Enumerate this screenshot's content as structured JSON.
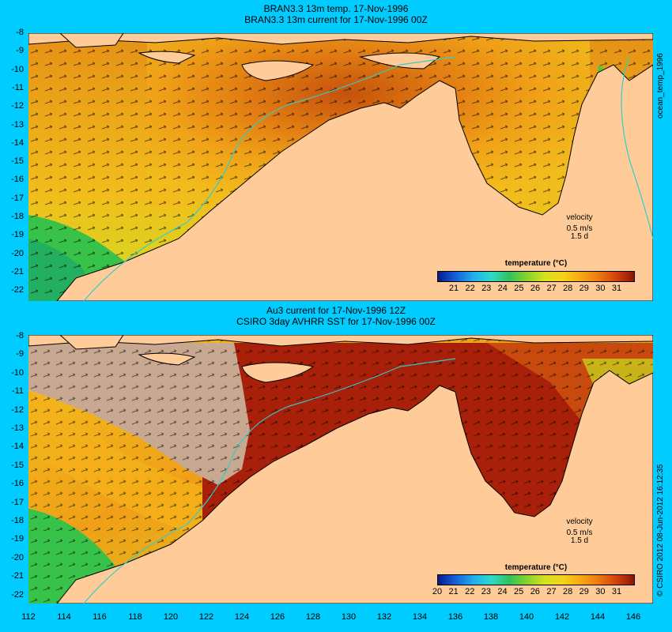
{
  "top": {
    "title1": "BRAN3.3 13m temp. 17-Nov-1996",
    "title2": "BRAN3.3 13m current for 17-Nov-1996 00Z",
    "side_label": "ocean_temp_1996",
    "colorbar_title": "temperature (°C)",
    "colorbar_ticks": [
      "21",
      "22",
      "23",
      "24",
      "25",
      "26",
      "27",
      "28",
      "29",
      "30",
      "31"
    ],
    "velocity_label": "velocity",
    "velocity_scale": "0.5 m/s",
    "velocity_days": "1.5 d"
  },
  "bottom": {
    "title1": "Au3 current for 17-Nov-1996 12Z",
    "title2": "CSIRO 3day AVHRR SST for 17-Nov-1996 00Z",
    "side_label": "© CSIRO 2012  08-Jun-2012 16:12:35",
    "colorbar_title": "temperature (°C)",
    "colorbar_ticks": [
      "20",
      "21",
      "22",
      "23",
      "24",
      "25",
      "26",
      "27",
      "28",
      "29",
      "30",
      "31"
    ],
    "velocity_label": "velocity",
    "velocity_scale": "0.5 m/s",
    "velocity_days": "1.5 d"
  },
  "axes": {
    "lat_ticks": [
      "-8",
      "-9",
      "-10",
      "-11",
      "-12",
      "-13",
      "-14",
      "-15",
      "-16",
      "-17",
      "-18",
      "-19",
      "-20",
      "-21",
      "-22"
    ],
    "lon_ticks": [
      "112",
      "114",
      "116",
      "118",
      "120",
      "122",
      "124",
      "126",
      "128",
      "130",
      "132",
      "134",
      "136",
      "138",
      "140",
      "142",
      "144",
      "146"
    ]
  },
  "colors": {
    "background": "#00ccff",
    "land": "#ffcc99",
    "cloud_mask": "#c8a890",
    "coastline": "#000000",
    "isobath": "#33cccc"
  }
}
